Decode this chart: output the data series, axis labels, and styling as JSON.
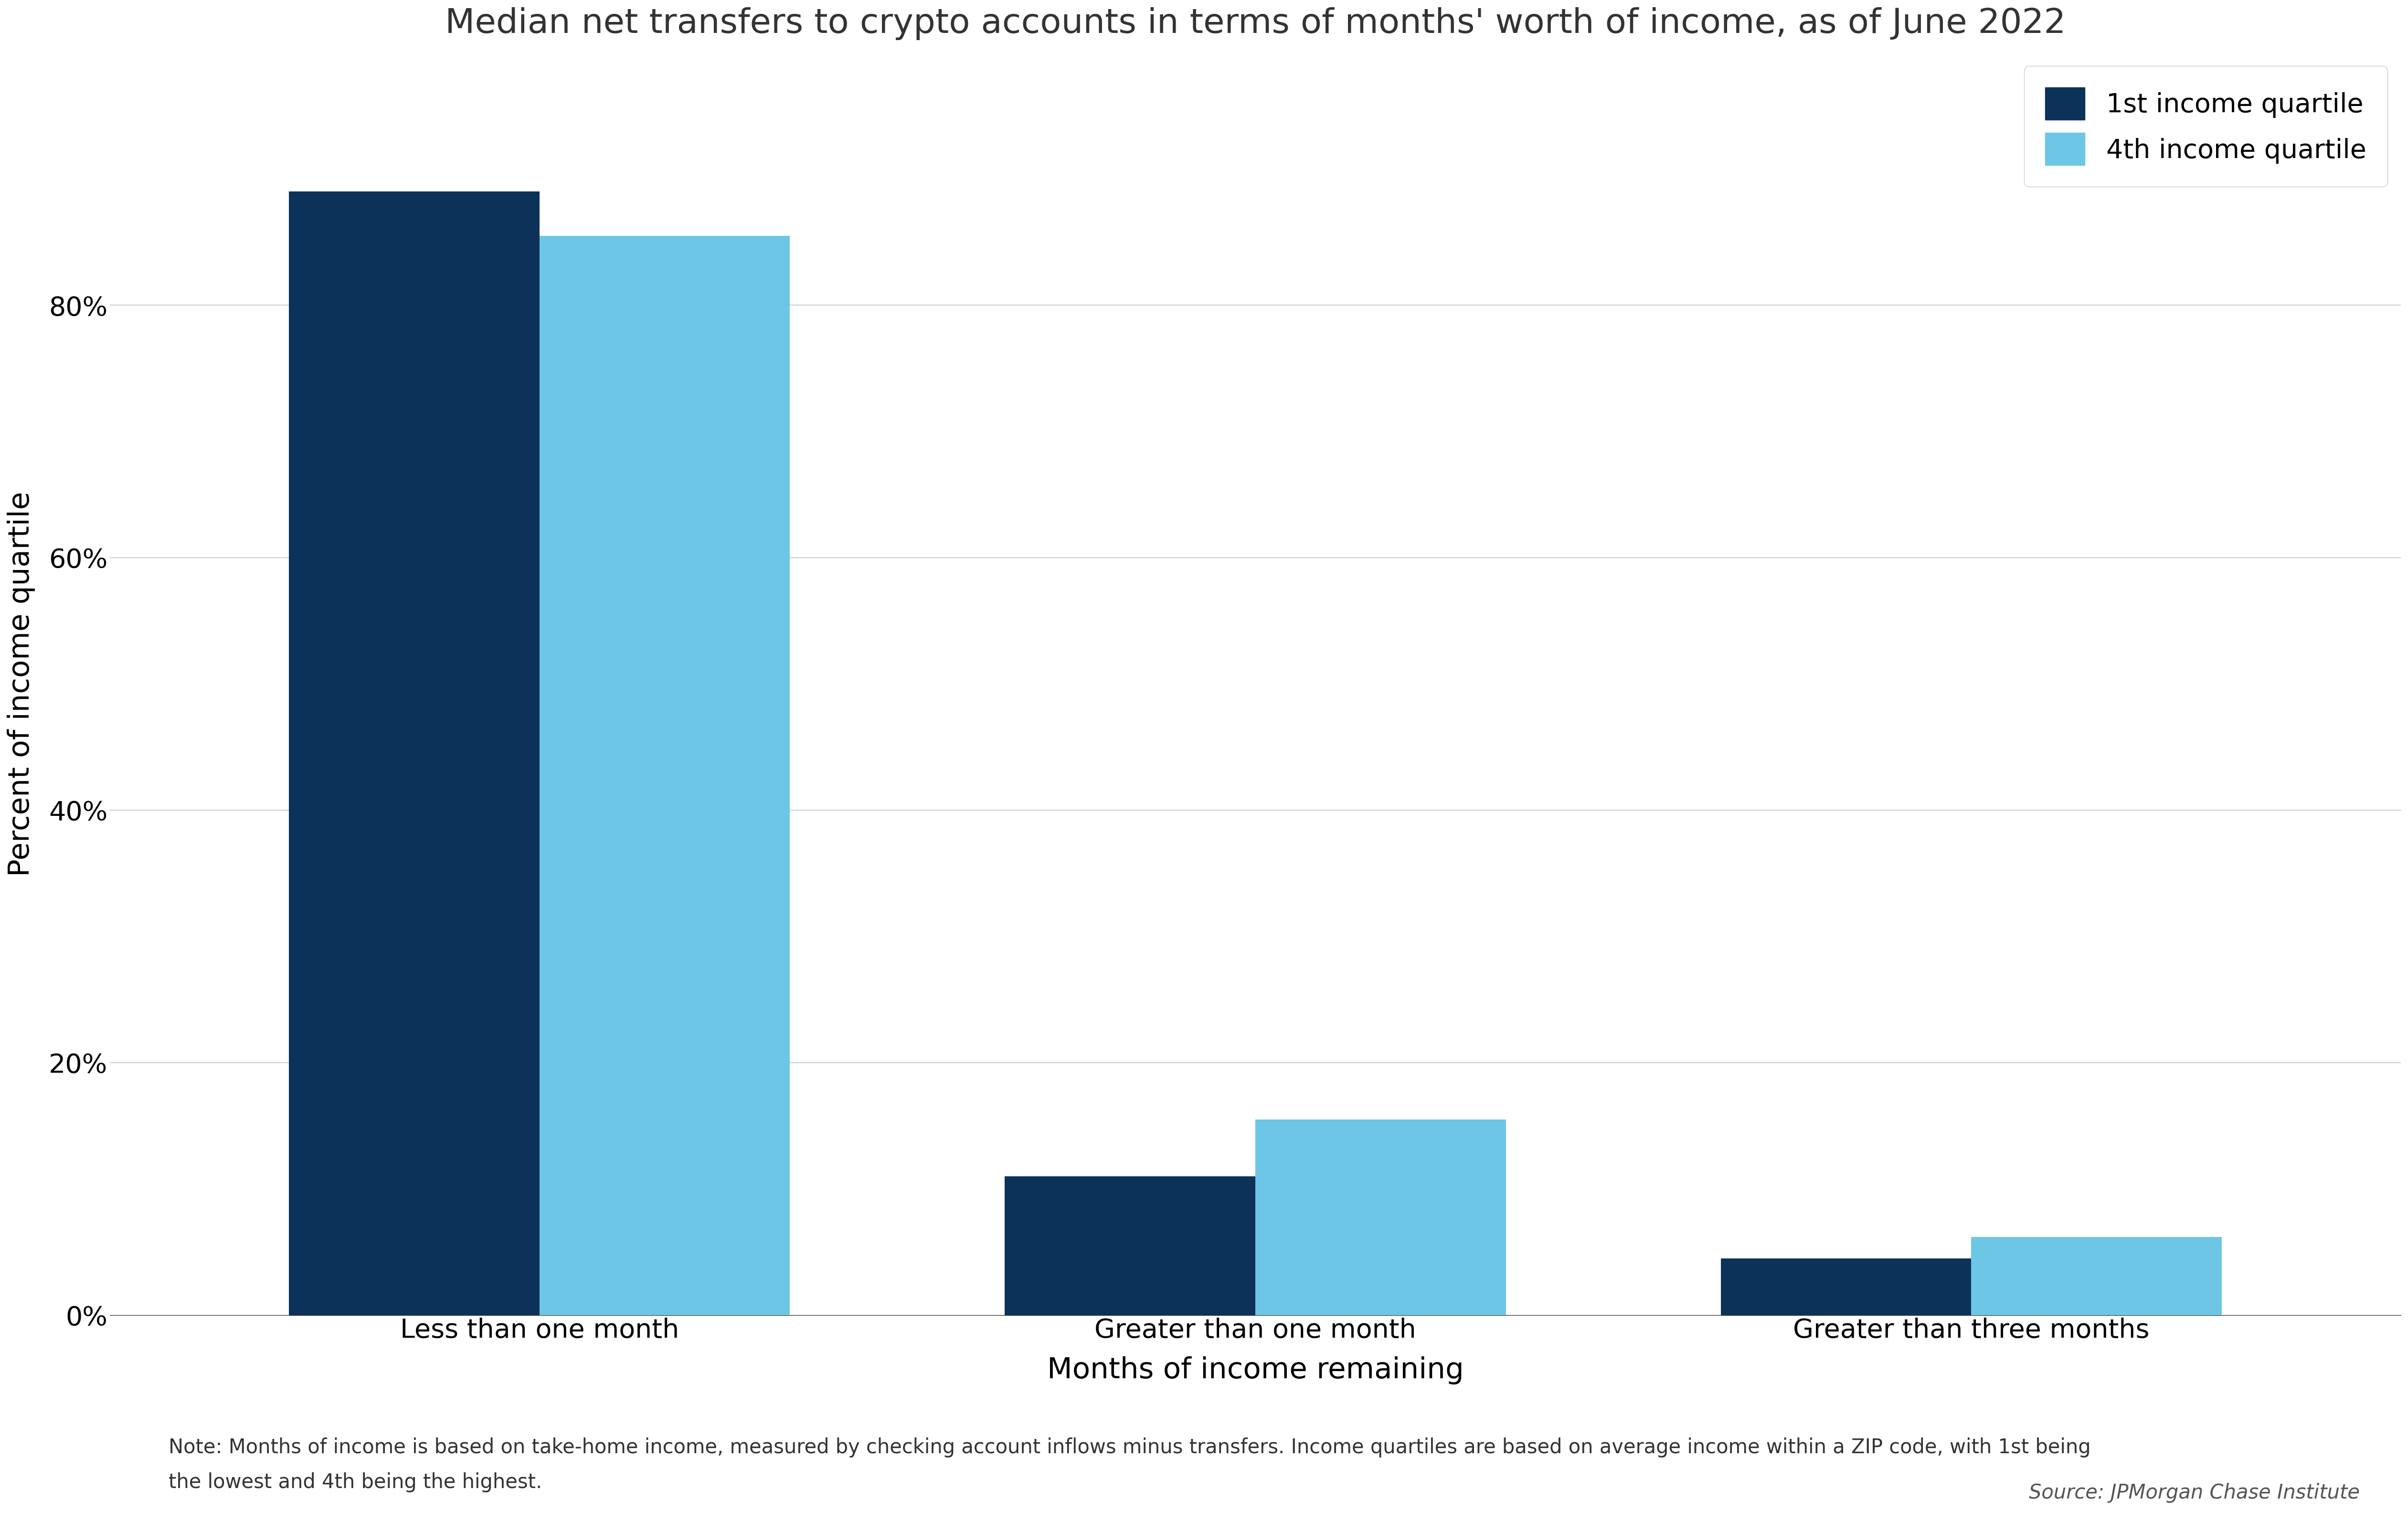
{
  "title": "Median net transfers to crypto accounts in terms of months' worth of income, as of June 2022",
  "categories": [
    "Less than one month",
    "Greater than one month",
    "Greater than three months"
  ],
  "q1_values": [
    0.89,
    0.11,
    0.045
  ],
  "q4_values": [
    0.855,
    0.155,
    0.062
  ],
  "q1_color": "#0d3259",
  "q4_color": "#6ec6e6",
  "xlabel": "Months of income remaining",
  "ylabel": "Percent of income quartile",
  "yticks": [
    0.0,
    0.2,
    0.4,
    0.6,
    0.8
  ],
  "ytick_labels": [
    "0%",
    "20%",
    "40%",
    "60%",
    "80%"
  ],
  "legend_labels": [
    "1st income quartile",
    "4th income quartile"
  ],
  "note_line1": "Note: Months of income is based on take-home income, measured by checking account inflows minus transfers. Income quartiles are based on average income within a ZIP code, with 1st being",
  "note_line2": "the lowest and 4th being the highest.",
  "source": "Source: JPMorgan Chase Institute",
  "bar_width": 0.35,
  "background_color": "#ffffff",
  "grid_color": "#d0d0d0",
  "title_fontsize": 52,
  "axis_label_fontsize": 44,
  "tick_fontsize": 40,
  "legend_fontsize": 40,
  "note_fontsize": 30,
  "source_fontsize": 30
}
